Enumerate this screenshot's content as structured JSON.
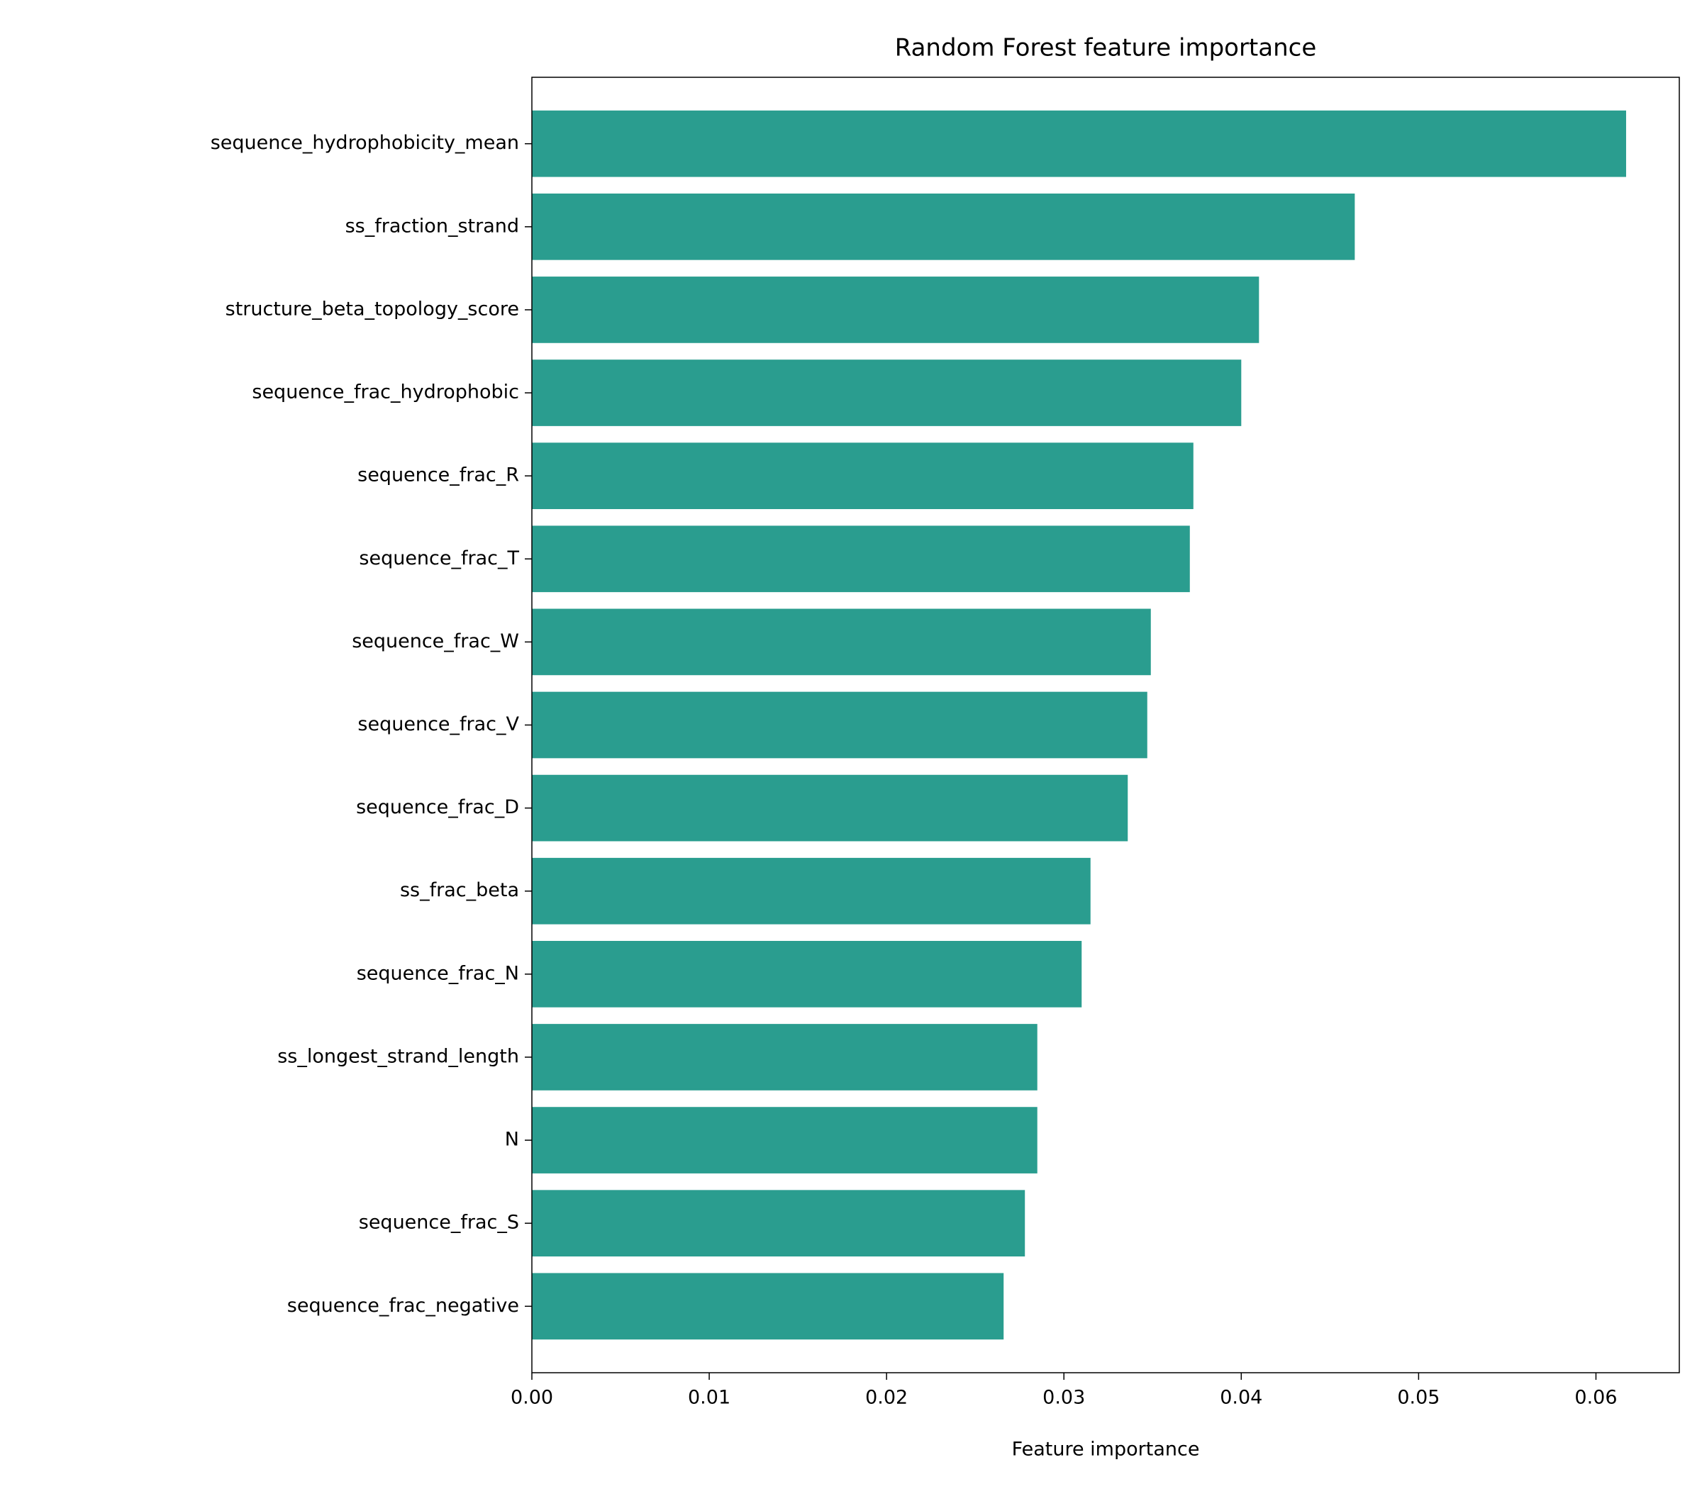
{
  "chart_data": {
    "type": "barh",
    "title": "Random Forest feature importance",
    "x_label": "Feature importance",
    "categories": [
      "sequence_hydrophobicity_mean",
      "ss_fraction_strand",
      "structure_beta_topology_score",
      "sequence_frac_hydrophobic",
      "sequence_frac_R",
      "sequence_frac_T",
      "sequence_frac_W",
      "sequence_frac_V",
      "sequence_frac_D",
      "ss_frac_beta",
      "sequence_frac_N",
      "ss_longest_strand_length",
      "N",
      "sequence_frac_S",
      "sequence_frac_negative"
    ],
    "values": [
      0.0617,
      0.0464,
      0.041,
      0.04,
      0.0373,
      0.0371,
      0.0349,
      0.0347,
      0.0336,
      0.0315,
      0.031,
      0.0285,
      0.0285,
      0.0278,
      0.0266
    ],
    "color": "#2a9d8f",
    "xlim": [
      0,
      0.0647
    ],
    "xticks": [
      {
        "value": 0,
        "label": "0.00"
      },
      {
        "value": 0.01,
        "label": "0.01"
      },
      {
        "value": 0.02,
        "label": "0.02"
      },
      {
        "value": 0.03,
        "label": "0.03"
      },
      {
        "value": 0.04,
        "label": "0.04"
      },
      {
        "value": 0.05,
        "label": "0.05"
      },
      {
        "value": 0.06,
        "label": "0.06"
      }
    ],
    "grid": false
  }
}
